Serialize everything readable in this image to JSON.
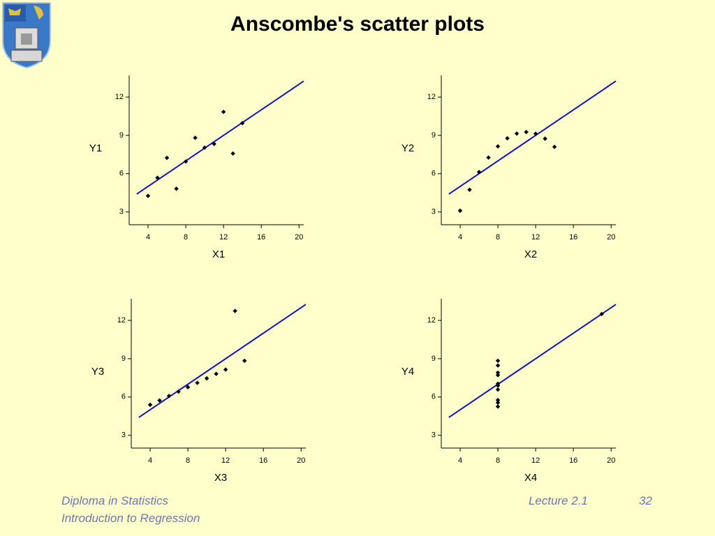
{
  "title": "Anscombe's scatter plots",
  "footer": {
    "left": [
      "Diploma in Statistics",
      "Introduction to Regression"
    ],
    "lecture": "Lecture 2.1",
    "page": "32"
  },
  "chart_data": [
    {
      "type": "scatter",
      "xlabel": "X1",
      "ylabel": "Y1",
      "x": [
        10,
        8,
        13,
        9,
        11,
        14,
        6,
        4,
        12,
        7,
        5
      ],
      "y": [
        8.04,
        6.95,
        7.58,
        8.81,
        8.33,
        9.96,
        7.24,
        4.26,
        10.84,
        4.82,
        5.68
      ],
      "color": "#000000",
      "fit": {
        "intercept": 3,
        "slope": 0.5,
        "color": "#1010d0"
      },
      "xlim": [
        2,
        20.5
      ],
      "ylim": [
        2,
        13.7
      ],
      "xticks": [
        4,
        8,
        12,
        16,
        20
      ],
      "yticks": [
        3,
        6,
        9,
        12
      ]
    },
    {
      "type": "scatter",
      "xlabel": "X2",
      "ylabel": "Y2",
      "x": [
        10,
        8,
        13,
        9,
        11,
        14,
        6,
        4,
        12,
        7,
        5
      ],
      "y": [
        9.14,
        8.14,
        8.74,
        8.77,
        9.26,
        8.1,
        6.13,
        3.1,
        9.13,
        7.26,
        4.74
      ],
      "color": "#000000",
      "fit": {
        "intercept": 3,
        "slope": 0.5,
        "color": "#1010d0"
      },
      "xlim": [
        2,
        20.5
      ],
      "ylim": [
        2,
        13.7
      ],
      "xticks": [
        4,
        8,
        12,
        16,
        20
      ],
      "yticks": [
        3,
        6,
        9,
        12
      ]
    },
    {
      "type": "scatter",
      "xlabel": "X3",
      "ylabel": "Y3",
      "x": [
        10,
        8,
        13,
        9,
        11,
        14,
        6,
        4,
        12,
        7,
        5
      ],
      "y": [
        7.46,
        6.77,
        12.74,
        7.11,
        7.81,
        8.84,
        6.08,
        5.39,
        8.15,
        6.42,
        5.73
      ],
      "color": "#000000",
      "fit": {
        "intercept": 3,
        "slope": 0.5,
        "color": "#1010d0"
      },
      "xlim": [
        2,
        20.5
      ],
      "ylim": [
        2,
        13.7
      ],
      "xticks": [
        4,
        8,
        12,
        16,
        20
      ],
      "yticks": [
        3,
        6,
        9,
        12
      ]
    },
    {
      "type": "scatter",
      "xlabel": "X4",
      "ylabel": "Y4",
      "x": [
        8,
        8,
        8,
        8,
        8,
        8,
        8,
        19,
        8,
        8,
        8
      ],
      "y": [
        6.58,
        5.76,
        7.71,
        8.84,
        8.47,
        7.04,
        5.25,
        12.5,
        5.56,
        7.91,
        6.89
      ],
      "color": "#000000",
      "fit": {
        "intercept": 3,
        "slope": 0.5,
        "color": "#1010d0"
      },
      "xlim": [
        2,
        20.5
      ],
      "ylim": [
        2,
        13.7
      ],
      "xticks": [
        4,
        8,
        12,
        16,
        20
      ],
      "yticks": [
        3,
        6,
        9,
        12
      ]
    }
  ]
}
